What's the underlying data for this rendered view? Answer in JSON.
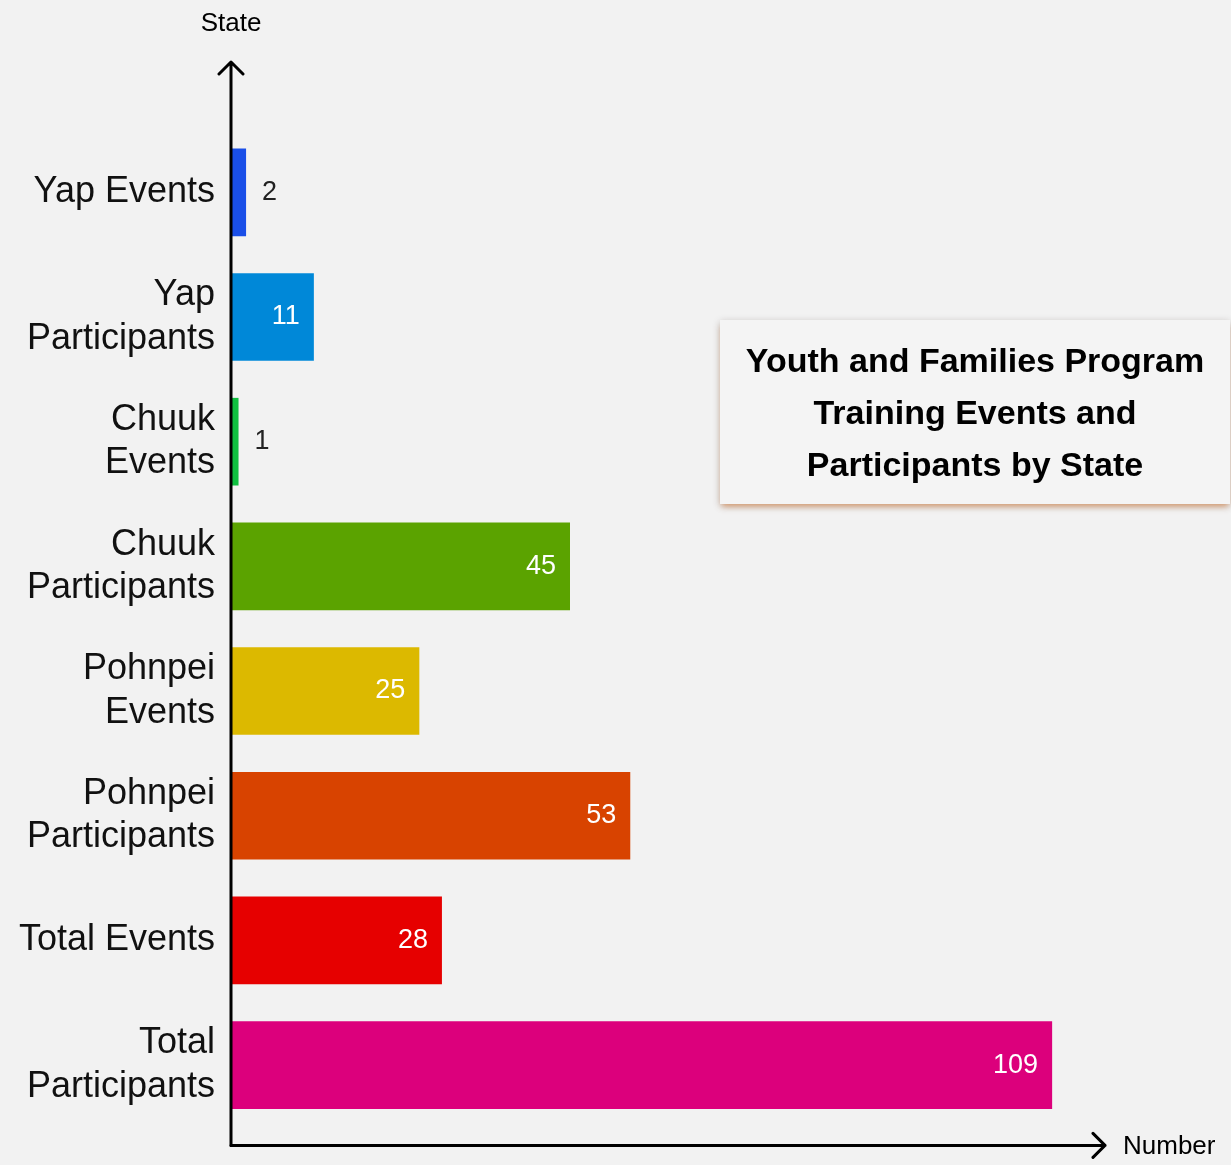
{
  "chart_data": {
    "type": "bar",
    "orientation": "horizontal",
    "title": "Youth and Families Program Training Events and Participants by State",
    "xlabel": "Number",
    "ylabel": "State",
    "categories": [
      "Yap Events",
      "Yap Participants",
      "Chuuk Events",
      "Chuuk Participants",
      "Pohnpei Events",
      "Pohnpei Participants",
      "Total Events",
      "Total Participants"
    ],
    "values": [
      2,
      11,
      1,
      45,
      25,
      53,
      28,
      109
    ],
    "colors": [
      "#1a4fe8",
      "#0088d8",
      "#10c040",
      "#5ba300",
      "#dcb900",
      "#d84300",
      "#e60000",
      "#dc007c"
    ],
    "data_labels": true,
    "grid": false,
    "legend": false,
    "tick_labels": "y"
  }
}
